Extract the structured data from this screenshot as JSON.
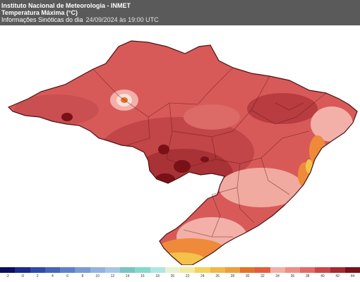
{
  "header": {
    "line1": "Instituto Nacional de Meteorologia - INMET",
    "line2": "Temperatura Máxima (°C)",
    "line3": "Informações Sinóticas do dia",
    "time": "24/09/2024 às 19:00 UTC"
  },
  "legend": {
    "colors": [
      "#0b0d5e",
      "#1b2a8c",
      "#2e4aa8",
      "#4465b8",
      "#5d80c8",
      "#7a9ad4",
      "#93b2de",
      "#a6c6e8",
      "#79c4c0",
      "#86d8c8",
      "#aee6e2",
      "#e6f3d0",
      "#f6e8a0",
      "#f3d35e",
      "#f0b848",
      "#eda03a",
      "#e2722a",
      "#e35c3e",
      "#f2b0a8",
      "#ec8f87",
      "#e26b66",
      "#cc4549",
      "#a52a30",
      "#7a1018"
    ],
    "ticks": [
      "-2",
      "-0",
      "2",
      "4",
      "6",
      "8",
      "10",
      "12",
      "14",
      "16",
      "18",
      "20",
      "22",
      "24",
      "26",
      "28",
      "30",
      "32",
      "34",
      "36",
      "38",
      "40",
      "42",
      "44"
    ]
  },
  "map": {
    "palette": {
      "base": "#d85a58",
      "hot": "#c24548",
      "hotter": "#a83236",
      "extreme": "#7a1018",
      "pink": "#f2b0a8",
      "orange": "#ee8a3a",
      "yellow": "#f4c24a"
    }
  }
}
